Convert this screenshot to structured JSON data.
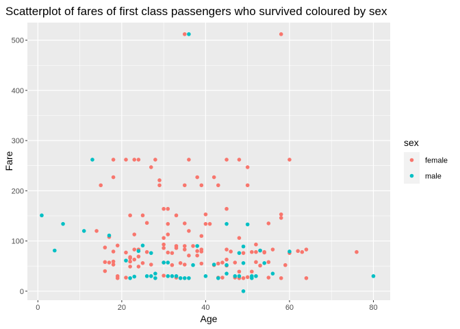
{
  "chart_data": {
    "type": "scatter",
    "title": "Scatterplot of fares of first class passengers who survived coloured by sex",
    "xlabel": "Age",
    "ylabel": "Fare",
    "xlim": [
      -2.5,
      84
    ],
    "ylim": [
      -18,
      535
    ],
    "xticks": [
      0,
      20,
      40,
      60,
      80
    ],
    "yticks": [
      0,
      100,
      200,
      300,
      400,
      500
    ],
    "grid": true,
    "legend": {
      "title": "sex",
      "position": "right"
    },
    "series": [
      {
        "name": "female",
        "color": "#F8766D",
        "points": [
          [
            14,
            120
          ],
          [
            15,
            211
          ],
          [
            16,
            40
          ],
          [
            16,
            58
          ],
          [
            16,
            87
          ],
          [
            17,
            57
          ],
          [
            17,
            108
          ],
          [
            18,
            227
          ],
          [
            18,
            262
          ],
          [
            18,
            59
          ],
          [
            18,
            79
          ],
          [
            18,
            53
          ],
          [
            19,
            91
          ],
          [
            19,
            30
          ],
          [
            19,
            26
          ],
          [
            21,
            262
          ],
          [
            21,
            77
          ],
          [
            21,
            27
          ],
          [
            22,
            151
          ],
          [
            22,
            66
          ],
          [
            22,
            68
          ],
          [
            22,
            59
          ],
          [
            22,
            49
          ],
          [
            23,
            262
          ],
          [
            23,
            113
          ],
          [
            23,
            83
          ],
          [
            23,
            63
          ],
          [
            24,
            262
          ],
          [
            24,
            69
          ],
          [
            24,
            83
          ],
          [
            24,
            49
          ],
          [
            25,
            151
          ],
          [
            25,
            56
          ],
          [
            26,
            136
          ],
          [
            26,
            78
          ],
          [
            27,
            247
          ],
          [
            27,
            53
          ],
          [
            28,
            262
          ],
          [
            29,
            221
          ],
          [
            29,
            211
          ],
          [
            30,
            164
          ],
          [
            30,
            106
          ],
          [
            30,
            93
          ],
          [
            30,
            86
          ],
          [
            30,
            57
          ],
          [
            30,
            31
          ],
          [
            31,
            164
          ],
          [
            31,
            113
          ],
          [
            31,
            134
          ],
          [
            31,
            77
          ],
          [
            32,
            76
          ],
          [
            32,
            52
          ],
          [
            33,
            151
          ],
          [
            33,
            90
          ],
          [
            33,
            86
          ],
          [
            33,
            27
          ],
          [
            34,
            56
          ],
          [
            35,
            512
          ],
          [
            35,
            211
          ],
          [
            35,
            135
          ],
          [
            35,
            90
          ],
          [
            35,
            83
          ],
          [
            35,
            53
          ],
          [
            36,
            262
          ],
          [
            36,
            120
          ],
          [
            36,
            71
          ],
          [
            37,
            90
          ],
          [
            38,
            227
          ],
          [
            38,
            80
          ],
          [
            38,
            71
          ],
          [
            39,
            211
          ],
          [
            39,
            110
          ],
          [
            39,
            83
          ],
          [
            39,
            79
          ],
          [
            39,
            55
          ],
          [
            40,
            153
          ],
          [
            40,
            134
          ],
          [
            41,
            134
          ],
          [
            42,
            227
          ],
          [
            42,
            52
          ],
          [
            43,
            211
          ],
          [
            43,
            55
          ],
          [
            43,
            27
          ],
          [
            44,
            57
          ],
          [
            44,
            27
          ],
          [
            45,
            262
          ],
          [
            45,
            164
          ],
          [
            45,
            83
          ],
          [
            45,
            63
          ],
          [
            45,
            51
          ],
          [
            46,
            79
          ],
          [
            47,
            57
          ],
          [
            47,
            27
          ],
          [
            48,
            262
          ],
          [
            48,
            106
          ],
          [
            48,
            39
          ],
          [
            48,
            26
          ],
          [
            49,
            76
          ],
          [
            49,
            26
          ],
          [
            50,
            247
          ],
          [
            50,
            211
          ],
          [
            50,
            28
          ],
          [
            51,
            78
          ],
          [
            51,
            39
          ],
          [
            52,
            93
          ],
          [
            52,
            78
          ],
          [
            52,
            58
          ],
          [
            53,
            51
          ],
          [
            53,
            81
          ],
          [
            54,
            77
          ],
          [
            54,
            78
          ],
          [
            55,
            135
          ],
          [
            55,
            58
          ],
          [
            55,
            27
          ],
          [
            56,
            83
          ],
          [
            58,
            153
          ],
          [
            58,
            146
          ],
          [
            58,
            512
          ],
          [
            58,
            26
          ],
          [
            59,
            52
          ],
          [
            60,
            262
          ],
          [
            60,
            76
          ],
          [
            62,
            80
          ],
          [
            63,
            78
          ],
          [
            64,
            83
          ],
          [
            64,
            26
          ],
          [
            76,
            78
          ]
        ]
      },
      {
        "name": "male",
        "color": "#00BFC4",
        "points": [
          [
            0.92,
            151
          ],
          [
            4,
            81
          ],
          [
            6,
            134
          ],
          [
            11,
            120
          ],
          [
            13,
            262
          ],
          [
            17,
            111
          ],
          [
            21,
            61
          ],
          [
            22,
            26
          ],
          [
            23,
            29
          ],
          [
            24,
            80
          ],
          [
            25,
            91
          ],
          [
            26,
            30
          ],
          [
            27,
            76
          ],
          [
            27,
            30
          ],
          [
            28,
            26
          ],
          [
            28,
            35
          ],
          [
            30,
            57
          ],
          [
            31,
            30
          ],
          [
            31,
            57
          ],
          [
            32,
            30
          ],
          [
            33,
            30
          ],
          [
            34,
            26
          ],
          [
            35,
            26
          ],
          [
            36,
            512
          ],
          [
            36,
            26
          ],
          [
            37,
            52
          ],
          [
            38,
            90
          ],
          [
            40,
            30
          ],
          [
            42,
            53
          ],
          [
            43,
            26
          ],
          [
            45,
            52
          ],
          [
            45,
            134
          ],
          [
            45,
            35
          ],
          [
            47,
            30
          ],
          [
            48,
            30
          ],
          [
            48,
            76
          ],
          [
            49,
            89
          ],
          [
            49,
            56
          ],
          [
            49,
            0
          ],
          [
            50,
            133
          ],
          [
            51,
            26
          ],
          [
            51,
            30
          ],
          [
            52,
            30
          ],
          [
            53,
            81
          ],
          [
            54,
            56
          ],
          [
            56,
            35
          ],
          [
            60,
            79
          ],
          [
            80,
            30
          ]
        ]
      }
    ]
  }
}
